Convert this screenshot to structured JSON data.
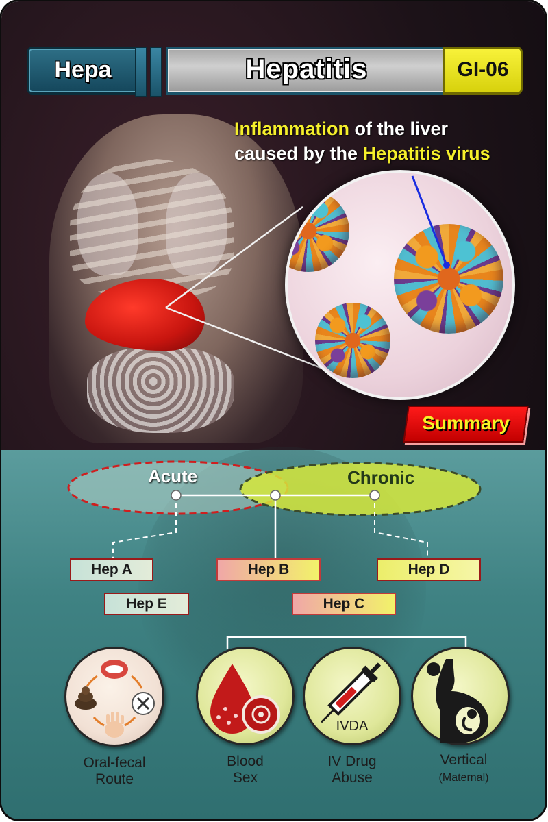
{
  "header": {
    "short_label": "Hepa",
    "title": "Hepatitis",
    "code": "GI-06"
  },
  "intro": {
    "highlight_1": "Inflammation",
    "text_1": " of the liver",
    "text_2": "caused by the ",
    "highlight_2": "Hepatitis virus"
  },
  "summary": {
    "tab_label": "Summary",
    "acute_label": "Acute",
    "chronic_label": "Chronic",
    "hep_types": {
      "a": "Hep A",
      "b": "Hep B",
      "c": "Hep C",
      "d": "Hep D",
      "e": "Hep E"
    },
    "routes": {
      "oral_fecal": {
        "line1": "Oral-fecal",
        "line2": "Route"
      },
      "blood_sex": {
        "line1": "Blood",
        "line2": "Sex"
      },
      "iv_drug": {
        "line1": "IV Drug",
        "line2": "Abuse",
        "icon_text": "IVDA"
      },
      "vertical": {
        "line1": "Vertical",
        "line2": "(Maternal)"
      }
    }
  },
  "colors": {
    "highlight_yellow": "#f5ef2b",
    "summary_red": "#e00000",
    "acute_outline": "#d01e1e",
    "chronic_fill": "#c8df3a",
    "panel_teal": "#3f8283",
    "liver_red": "#d61a12"
  },
  "icons": [
    "mouth-icon",
    "stool-icon",
    "utensils-icon",
    "hand-icon",
    "blood-drop-icon",
    "virus-icon",
    "syringe-icon",
    "pregnant-woman-icon",
    "fetus-icon"
  ]
}
